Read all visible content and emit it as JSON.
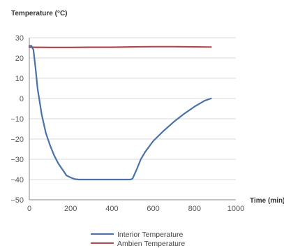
{
  "chart_data": {
    "type": "line",
    "title": "",
    "ylabel": "Temperature (°C)",
    "xlabel": "Time (min)",
    "xlim": [
      0,
      1000
    ],
    "ylim": [
      -50,
      30
    ],
    "x_ticks": [
      0,
      200,
      400,
      600,
      800,
      1000
    ],
    "y_ticks": [
      30,
      20,
      10,
      0,
      -10,
      -20,
      -30,
      -40,
      -50
    ],
    "grid": "horizontal",
    "legend_position": "bottom",
    "series": [
      {
        "name": "Interior Temperature",
        "color": "#4a72a8",
        "x": [
          0,
          10,
          20,
          30,
          40,
          60,
          80,
          100,
          120,
          140,
          160,
          180,
          200,
          220,
          240,
          260,
          300,
          350,
          400,
          450,
          490,
          500,
          520,
          540,
          560,
          600,
          650,
          700,
          750,
          800,
          850,
          880
        ],
        "y": [
          26,
          26,
          24,
          15,
          5,
          -8,
          -17,
          -23,
          -28,
          -32,
          -35,
          -38,
          -39,
          -39.8,
          -40,
          -40,
          -40,
          -40,
          -40,
          -40,
          -40,
          -39.5,
          -35,
          -30,
          -26.5,
          -21,
          -16,
          -11.5,
          -7.5,
          -4,
          -1,
          0
        ]
      },
      {
        "name": "Ambien Temperature",
        "color": "#b14a4a",
        "x": [
          0,
          100,
          200,
          300,
          400,
          500,
          600,
          700,
          800,
          880
        ],
        "y": [
          25.3,
          25.2,
          25.2,
          25.3,
          25.3,
          25.5,
          25.6,
          25.6,
          25.5,
          25.4
        ]
      }
    ]
  }
}
